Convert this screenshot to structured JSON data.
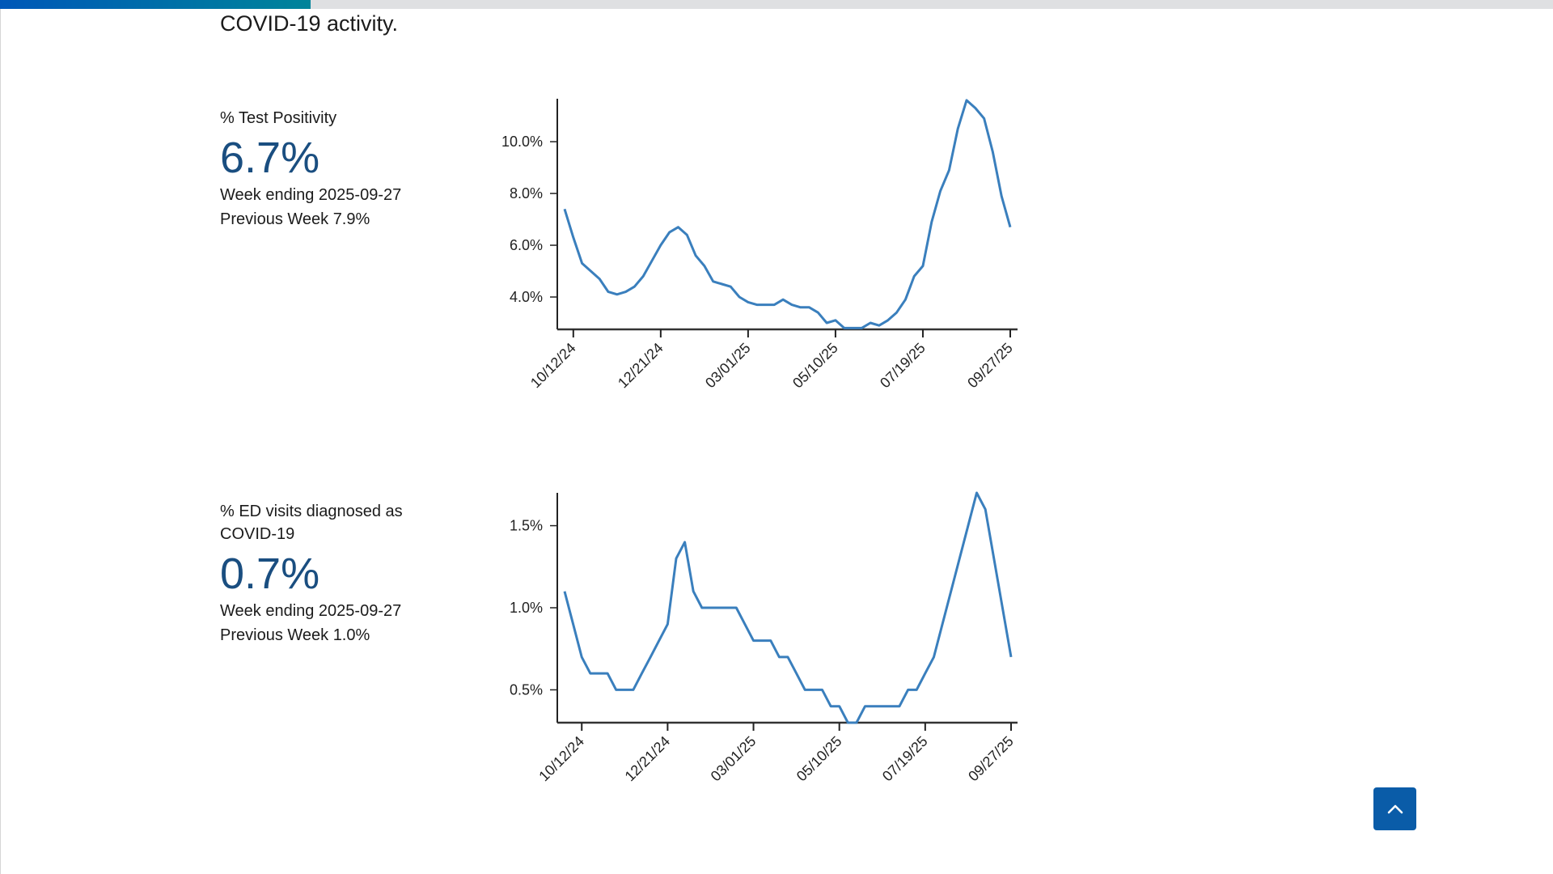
{
  "page": {
    "intro_text": "COVID-19 activity.",
    "progress_fraction": 0.2,
    "scroll_top_icon": "chevron-up-icon"
  },
  "metrics": [
    {
      "label": "% Test Positivity",
      "value": "6.7%",
      "week_ending": "Week ending 2025-09-27",
      "previous": "Previous Week 7.9%"
    },
    {
      "label": "% ED visits diagnosed as COVID-19",
      "value": "0.7%",
      "week_ending": "Week ending 2025-09-27",
      "previous": "Previous Week 1.0%"
    }
  ],
  "colors": {
    "line": "#3a7fbd",
    "value": "#1a4e80",
    "accent": "#0a5ca8"
  },
  "chart_data": [
    {
      "type": "line",
      "title": "% Test Positivity",
      "x_start": "10/05/24",
      "x_step_weeks": 1,
      "xtick_labels": [
        "10/12/24",
        "12/21/24",
        "03/01/25",
        "05/10/25",
        "07/19/25",
        "09/27/25"
      ],
      "xtick_index": [
        1,
        11,
        21,
        31,
        41,
        51
      ],
      "yticks": [
        4,
        6,
        8,
        10
      ],
      "ytick_labels": [
        "4.0%",
        "6.0%",
        "8.0%",
        "10.0%"
      ],
      "ylim": [
        2.75,
        11.66
      ],
      "grid": false,
      "series": [
        {
          "name": "% Test Positivity",
          "values": [
            7.4,
            6.3,
            5.3,
            5.0,
            4.7,
            4.2,
            4.1,
            4.2,
            4.4,
            4.8,
            5.4,
            6.0,
            6.5,
            6.7,
            6.4,
            5.6,
            5.2,
            4.6,
            4.5,
            4.4,
            4.0,
            3.8,
            3.7,
            3.7,
            3.7,
            3.9,
            3.7,
            3.6,
            3.6,
            3.4,
            3.0,
            3.1,
            2.8,
            2.8,
            2.8,
            3.0,
            2.9,
            3.1,
            3.4,
            3.9,
            4.8,
            5.2,
            6.9,
            8.1,
            8.9,
            10.5,
            11.6,
            11.3,
            10.9,
            9.6,
            7.9,
            6.7
          ]
        }
      ]
    },
    {
      "type": "line",
      "title": "% ED visits diagnosed as COVID-19",
      "x_start": "09/28/24",
      "x_step_weeks": 1,
      "xtick_labels": [
        "10/12/24",
        "12/21/24",
        "03/01/25",
        "05/10/25",
        "07/19/25",
        "09/27/25"
      ],
      "xtick_index": [
        2,
        12,
        22,
        32,
        42,
        52
      ],
      "yticks": [
        0.5,
        1.0,
        1.5
      ],
      "ytick_labels": [
        "0.5%",
        "1.0%",
        "1.5%"
      ],
      "ylim": [
        0.3,
        1.7
      ],
      "grid": false,
      "series": [
        {
          "name": "% ED visits",
          "values": [
            1.1,
            0.9,
            0.7,
            0.6,
            0.6,
            0.6,
            0.5,
            0.5,
            0.5,
            0.6,
            0.7,
            0.8,
            0.9,
            1.3,
            1.4,
            1.1,
            1.0,
            1.0,
            1.0,
            1.0,
            1.0,
            0.9,
            0.8,
            0.8,
            0.8,
            0.7,
            0.7,
            0.6,
            0.5,
            0.5,
            0.5,
            0.4,
            0.4,
            0.3,
            0.3,
            0.4,
            0.4,
            0.4,
            0.4,
            0.4,
            0.5,
            0.5,
            0.6,
            0.7,
            0.9,
            1.1,
            1.3,
            1.5,
            1.7,
            1.6,
            1.3,
            1.0,
            0.7
          ]
        }
      ]
    }
  ]
}
